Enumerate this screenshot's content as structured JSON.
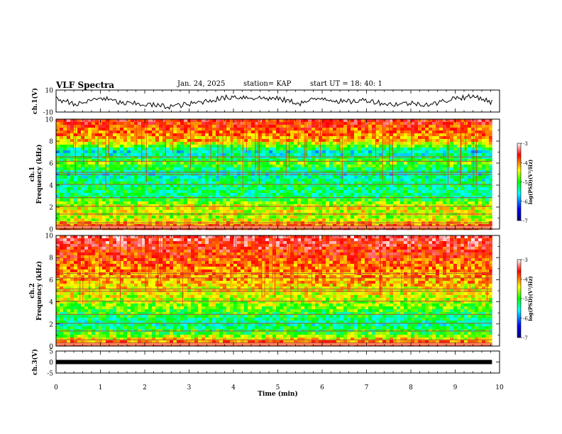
{
  "header": {
    "title": "VLF Spectra",
    "date": "Jan. 24, 2025",
    "station": "station= KAP",
    "start_ut": "start  UT =   18: 40: 1"
  },
  "panels": {
    "ch1_label": "ch.1(V)",
    "spec1_label": "ch.1 Frequency (kHz)",
    "spec2_label": "ch.2 Frequency (kHz)",
    "ch3_label": "ch.3(V)",
    "xlabel": "Time (min)",
    "colorbar_label": "log(PSD)(V²/Hz)"
  },
  "colors": {
    "colormap": [
      "#000080",
      "#0000ff",
      "#00ffff",
      "#00ff00",
      "#ffff00",
      "#ff0000",
      "#ffffff"
    ]
  },
  "chart_data": [
    {
      "type": "line",
      "name": "ch1-waveform",
      "ylabel": "ch.1(V)",
      "xlim": [
        0,
        10
      ],
      "ylim": [
        -10,
        10
      ],
      "yticks": [
        10,
        -10
      ],
      "data_end_min": 9.83,
      "x": [
        0,
        0.5,
        1,
        1.5,
        2,
        2.5,
        3,
        3.5,
        4,
        4.5,
        5,
        5.5,
        6,
        6.5,
        7,
        7.5,
        8,
        8.5,
        9,
        9.5,
        9.8
      ],
      "y": [
        2,
        -3,
        3,
        -2,
        -3,
        -5,
        -3,
        1,
        4,
        3,
        2,
        -2,
        3,
        -1,
        1,
        -3,
        -2,
        -3,
        3,
        4,
        -1
      ]
    },
    {
      "type": "heatmap",
      "name": "ch1-spectrogram",
      "ylabel": "Frequency (kHz)",
      "ylim": [
        0,
        10
      ],
      "yticks": [
        0,
        2,
        4,
        6,
        8,
        10
      ],
      "xlim": [
        0,
        10
      ],
      "colorbar": {
        "min": -7,
        "max": -3,
        "ticks": [
          -3,
          -4,
          -5,
          -6,
          -7
        ]
      },
      "band_levels_khz": [
        0,
        1,
        2,
        3,
        4,
        5,
        6,
        7,
        8,
        9,
        10
      ],
      "band_log_psd": [
        -3.6,
        -4.6,
        -4.4,
        -5.3,
        -5.2,
        -5.5,
        -4.8,
        -5.6,
        -4.2,
        -3.9,
        -3.6
      ]
    },
    {
      "type": "heatmap",
      "name": "ch2-spectrogram",
      "ylabel": "Frequency (kHz)",
      "ylim": [
        0,
        10
      ],
      "yticks": [
        0,
        2,
        4,
        6,
        8,
        10
      ],
      "xlim": [
        0,
        10
      ],
      "colorbar": {
        "min": -7,
        "max": -3,
        "ticks": [
          -3,
          -4,
          -5,
          -6,
          -7
        ]
      },
      "band_levels_khz": [
        0,
        1,
        2,
        3,
        4,
        5,
        6,
        7,
        8,
        9,
        10
      ],
      "band_log_psd": [
        -3.5,
        -4.8,
        -5.4,
        -5.0,
        -4.6,
        -4.4,
        -4.1,
        -4.0,
        -3.8,
        -3.6,
        -3.4
      ]
    },
    {
      "type": "line",
      "name": "ch3-waveform",
      "ylabel": "ch.3(V)",
      "xlim": [
        0,
        10
      ],
      "ylim": [
        -5,
        5
      ],
      "yticks": [
        5,
        0,
        -5
      ],
      "x": [
        0,
        9.83
      ],
      "y": [
        0,
        0
      ]
    }
  ],
  "xaxis": {
    "label": "Time (min)",
    "ticks": [
      "0",
      "1",
      "2",
      "3",
      "4",
      "5",
      "6",
      "7",
      "8",
      "9",
      "10"
    ]
  }
}
